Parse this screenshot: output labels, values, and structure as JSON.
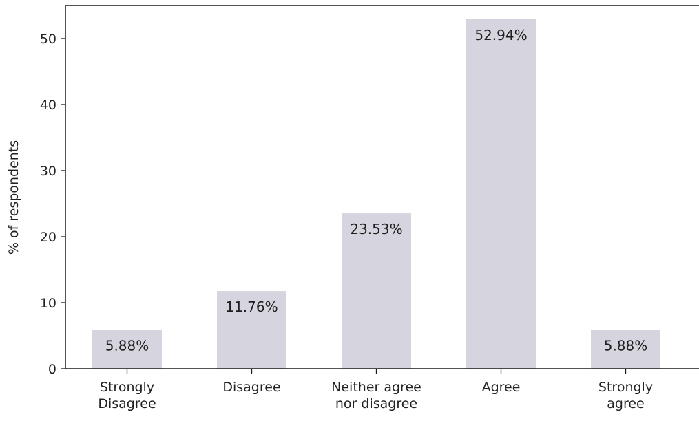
{
  "chart_data": {
    "type": "bar",
    "title": "",
    "xlabel": "",
    "ylabel": "% of respondents",
    "ylim": [
      0,
      55
    ],
    "yticks": [
      0,
      10,
      20,
      30,
      40,
      50
    ],
    "categories": [
      [
        "Strongly",
        "Disagree"
      ],
      [
        "Disagree"
      ],
      [
        "Neither agree",
        "nor disagree"
      ],
      [
        "Agree"
      ],
      [
        "Strongly",
        "agree"
      ]
    ],
    "values": [
      5.88,
      11.76,
      23.53,
      52.94,
      5.88
    ],
    "data_labels": [
      "5.88%",
      "11.76%",
      "23.53%",
      "52.94%",
      "5.88%"
    ],
    "grid": false,
    "colors": {
      "bar": "#d6d4de",
      "axis": "#1a1a1a",
      "text": "#222222"
    }
  }
}
